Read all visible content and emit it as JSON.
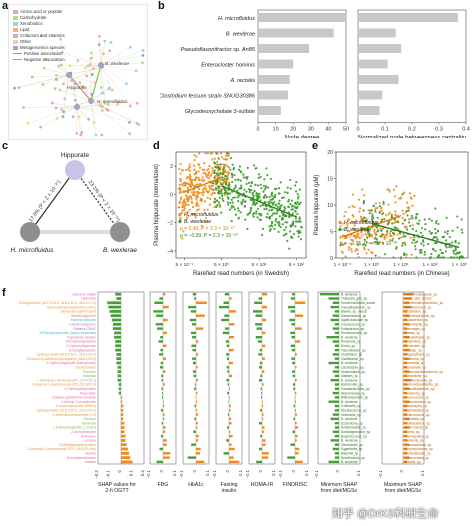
{
  "panels": {
    "a": "a",
    "b": "b",
    "c": "c",
    "d": "d",
    "e": "e",
    "f": "f"
  },
  "network": {
    "legend": [
      {
        "label": "Amino acid or peptide",
        "color": "#e8a3b5",
        "kind": "box"
      },
      {
        "label": "Carbohydrate",
        "color": "#b9d88e",
        "kind": "box"
      },
      {
        "label": "Xenobiotics",
        "color": "#9ad3e6",
        "kind": "box"
      },
      {
        "label": "Lipid",
        "color": "#f4b183",
        "kind": "box"
      },
      {
        "label": "Cofactors and vitamins",
        "color": "#d9a4de",
        "kind": "box"
      },
      {
        "label": "Other",
        "color": "#f7d57e",
        "kind": "box"
      },
      {
        "label": "Metagenomics species",
        "color": "#9aa6c8",
        "kind": "box"
      },
      {
        "label": "Positive association",
        "color": "#7bc043",
        "kind": "line"
      },
      {
        "label": "Negative association",
        "color": "#e8836b",
        "kind": "line"
      }
    ],
    "labels": [
      "B. wexlerae",
      "H. microfluidus",
      "Hippurate"
    ]
  },
  "chart_data": [
    {
      "type": "bar",
      "title": "",
      "categories": [
        "H. microfluidus",
        "B. wexlerae",
        "Pseudoflavonifractor sp. An85",
        "Enterocloster hominis",
        "A. rectalis",
        "Clostridium fessum strain SNUG30386",
        "Glycodeoxycholate 3-sulfate"
      ],
      "series": [
        {
          "values": [
            50,
            43,
            29,
            20,
            18,
            17,
            13
          ]
        }
      ],
      "xlabel": "Node degree",
      "xlim": [
        0,
        50
      ],
      "xticks": [
        "0",
        "10",
        "20",
        "30",
        "40",
        "50"
      ],
      "bar_color": "#c8c8c8"
    },
    {
      "type": "bar",
      "title": "",
      "categories": [
        "H. microfluidus",
        "B. wexlerae",
        "Pseudoflavonifractor sp. An85",
        "Enterocloster hominis",
        "A. rectalis",
        "Clostridium fessum strain SNUG30386",
        "Glycodeoxycholate 3-sulfate"
      ],
      "series": [
        {
          "values": [
            0.37,
            0.14,
            0.16,
            0.11,
            0.15,
            0.09,
            0.08
          ]
        }
      ],
      "xlabel": "Normalized node betweenness centrality",
      "xlim": [
        0,
        0.4
      ],
      "xticks": [
        "0",
        "0.1",
        "0.2",
        "0.3",
        "0.4"
      ],
      "bar_color": "#c8c8c8"
    },
    {
      "type": "scatter",
      "title": "",
      "xlabel": "Rarefied read numbers (in Swedish)",
      "ylabel": "Plasma hippurate (normalized)",
      "xticks": [
        "5 × 10⁻¹",
        "5 × 10⁰",
        "5 × 10¹",
        "5 × 10²"
      ],
      "yticks": [
        "−4",
        "−2",
        "0",
        "2"
      ],
      "ylim": [
        -4.5,
        3
      ],
      "series": [
        {
          "name": "H. microfluidus",
          "color": "#f08c1e",
          "trend": [
            [
              0.5,
              0.15
            ],
            [
              5,
              1.2
            ]
          ]
        },
        {
          "name": "B. wexlerae",
          "color": "#3a9a2a",
          "trend": [
            [
              5,
              0.6
            ],
            [
              500,
              -1.6
            ]
          ]
        }
      ],
      "annotations": [
        "ρ = 0.40, P = 2.3 × 10⁻⁵⁰",
        "ρ = −0.39, P = 2.3 × 10⁻⁵⁰"
      ]
    },
    {
      "type": "scatter",
      "title": "",
      "xlabel": "Rarefied read numbers (in Chinese)",
      "ylabel": "Plasma hippurate (μM)",
      "xticks": [
        "1 × 10⁻¹",
        "1 × 10⁰",
        "1 × 10¹",
        "1 × 10²",
        "1 × 10³"
      ],
      "yticks": [
        "0",
        "5",
        "10",
        "15",
        "20"
      ],
      "ylim": [
        0,
        20
      ],
      "series": [
        {
          "name": "H. microfluidus",
          "color": "#f08c1e",
          "trend": [
            [
              0.1,
              4
            ],
            [
              10,
              8
            ]
          ]
        },
        {
          "name": "B. wexlerae",
          "color": "#3a9a2a",
          "trend": [
            [
              1,
              6.5
            ],
            [
              1000,
              2
            ]
          ]
        }
      ],
      "annotations": [
        "ρ = 0.45, P = 4.1 × 10⁻⁵⁰",
        "ρ = −0.35, P = 7.8 × 10⁻³⁰"
      ]
    }
  ],
  "triangle": {
    "top": "Hippurate",
    "left": "H. microfluidus",
    "right": "B. wexlerae",
    "left_edge": "17.6% (P < 2 × 10⁻¹⁶)",
    "right_edge": "23.1% (P < 2 × 10⁻¹⁶)"
  },
  "shap": {
    "features": [
      "Catechol sulfate",
      "Hippurate",
      "Sphingomyelin (d17:1/16:0, d18:1/15:0, d16:1/17:0)",
      "Glycerophosphorylcholine (GPC)",
      "Glycerophosphoinositol",
      "Isobutyrylglycine",
      "Indolepropionate",
      "Cinnamoylglycine",
      "Gamma-CEHC",
      "3-Phenylpropionate (hydrocinnamate)",
      "Tryptophan betaine",
      "Phenylalanylalanine",
      "2-Hydroxyhippurate",
      "N-acetylglutamine",
      "Sphingomyelin (d18:2/24:1, d18:1/24:2)",
      "Glycosyl-N-palmitoyl-sphingosine (d18:1/16:0)",
      "2-Hydroxyhippurate (salicylurate)",
      "Deoxycholate",
      "Fructose",
      "Mannitol",
      "1-Palmitoyl-2-linoleoyl-GPC (16:0/18:2)",
      "1-Stearoyl-2-arachidonoyl-GPC (18:0/20:4)",
      "1-Carboxyethylvaline",
      "Pipecolate",
      "Cysteine-glutathione disulfide",
      "3-Methyl-2-oxovalerate",
      "3-Hydroxybutyrate (BHBA)",
      "Sphingomyelin (d18:1/20:0, d16:1/22:0)",
      "2-Methylbutyrylcarnitine (C5)",
      "Glucose",
      "Mannose",
      "1,5-Anhydroglucitol (1,5-AG)",
      "2-Aminobutyrate",
      "Isoleucine",
      "Leucine",
      "3-Methylglutarylcarnitine",
      "1-Linoleoyl-2-arachidonoyl-GPC (18:2/20:4n6)",
      "Glycine",
      "N-formylmethionine",
      "Alanine"
    ],
    "feature_colors": [
      "#e06c9f",
      "#e06c9f",
      "#e8983e",
      "#e8983e",
      "#e8983e",
      "#e06c9f",
      "#4db7c9",
      "#e06c9f",
      "#a566c7",
      "#4db7c9",
      "#e06c9f",
      "#e06c9f",
      "#e06c9f",
      "#e06c9f",
      "#e8983e",
      "#e8983e",
      "#e06c9f",
      "#e8983e",
      "#7fb34e",
      "#7fb34e",
      "#e8983e",
      "#e8983e",
      "#e06c9f",
      "#e06c9f",
      "#e06c9f",
      "#e06c9f",
      "#e8983e",
      "#e8983e",
      "#e8983e",
      "#7fb34e",
      "#7fb34e",
      "#7fb34e",
      "#e06c9f",
      "#e06c9f",
      "#e06c9f",
      "#e8983e",
      "#e8983e",
      "#e06c9f",
      "#e06c9f",
      "#e06c9f"
    ],
    "values": [
      -0.05,
      -0.04,
      -0.12,
      -0.11,
      -0.1,
      -0.09,
      -0.08,
      -0.07,
      -0.07,
      -0.06,
      -0.06,
      -0.05,
      -0.05,
      -0.05,
      -0.04,
      -0.04,
      -0.04,
      -0.03,
      -0.03,
      -0.03,
      -0.03,
      -0.02,
      -0.02,
      -0.02,
      0.01,
      0.01,
      0.02,
      0.02,
      0.02,
      0.02,
      0.03,
      0.03,
      0.03,
      0.04,
      0.04,
      0.05,
      0.06,
      0.07,
      0.08,
      0.1
    ],
    "xlabel": "SHAP values for 2-h OGTT",
    "xticks": [
      "−0.2",
      "−0.1",
      "0",
      "0.1",
      "0.2"
    ],
    "columns": [
      "FBG",
      "HbA1c",
      "Fasting insulin",
      "HOMA-IR",
      "FINDRISC"
    ],
    "column_ticks": [
      "−0.1",
      "0",
      "0.1"
    ],
    "min_label": "Minimum SHAP from diet/MGSs",
    "max_label": "Maximum SHAP from diet/MGSs",
    "min_species": [
      "B. wexlerae",
      "Thalassia_gen_sp.",
      "Hominimerdicola_aceae",
      "Faecalibacterium_sp.",
      "Blautia_sp._faecis",
      "Aleriamedicus_sp.",
      "Agathobaculum_sp.",
      "Coprococcus_sp.",
      "Eubacterium_sp.",
      "Ruminococcus_sp.",
      "B. wexlerae",
      "Roseburia_sp.",
      "Dorea_sp.",
      "Flavonifractor_sp.",
      "Clostridium_sp.",
      "Oscillibacter_sp.",
      "B. wexlerae",
      "Lachnospira_sp.",
      "Anaerostipes_sp.",
      "Alistipes_sp.",
      "B. wexlerae",
      "Bacteroides_sp.",
      "Parabacteroides_sp.",
      "Akkermansia_sp.",
      "Bifidobacterium_sp.",
      "B. wexlerae",
      "Collinsella_sp.",
      "Streptococcus_sp.",
      "Veillonella_sp.",
      "B. wexlerae",
      "Escherichia_sp.",
      "Holdemanella_sp.",
      "Subdoligranulum_sp.",
      "Butyricicoccus_sp.",
      "B. wexlerae",
      "Odoribacter_sp.",
      "Eggerthella_sp.",
      "Bilophila_sp.",
      "Desulfovibrio_sp.",
      "B. wexlerae"
    ],
    "min_values": [
      -0.09,
      -0.05,
      -0.03,
      -0.04,
      -0.02,
      -0.03,
      -0.04,
      -0.02,
      -0.03,
      -0.02,
      -0.06,
      -0.03,
      -0.02,
      -0.02,
      -0.03,
      -0.02,
      -0.05,
      -0.02,
      -0.03,
      -0.02,
      -0.04,
      -0.02,
      -0.02,
      -0.03,
      -0.02,
      -0.05,
      -0.02,
      -0.02,
      -0.03,
      -0.04,
      -0.02,
      -0.02,
      -0.03,
      -0.02,
      -0.04,
      -0.02,
      -0.03,
      -0.02,
      -0.02,
      -0.05
    ],
    "max_species": [
      "Alteromonadaceae_sp.",
      "Fruits_and_berries",
      "Hominenteromicrobium_sp.",
      "Ruminococcus_sp.",
      "Clostridium_sp.",
      "Lachnospiraceae_sp.",
      "Eubacterium_sp.",
      "Coprobacter_sp.",
      "Gemmiger_sp.",
      "Blautia_sp.",
      "Intestinibacter_sp.",
      "Butyrivibrio_sp.",
      "Firmicutes_sp.",
      "Dialister_sp.",
      "Megasphaera_sp.",
      "Sutterella_sp.",
      "Prevotella_sp.",
      "Barnesiella_sp.",
      "Phascolarctobacterium_sp.",
      "Turicibacter_sp.",
      "Christensenella_sp.",
      "Methanobrevibacter_sp.",
      "Faecalibacterium_sp.",
      "Roseburia_sp.",
      "Coprococcus_sp.",
      "Anaerotruncus_sp.",
      "Oscillospira_sp.",
      "Lactobacillus_sp.",
      "Enterococcus_sp.",
      "Klebsiella_sp.",
      "Cutibacterium_sp.",
      "Actinomyces_sp.",
      "Rothia_sp.",
      "Haemophilus_sp.",
      "Neisseria_sp.",
      "Fusobacterium_sp.",
      "Porphyromonas_sp.",
      "Gordonibacter_sp.",
      "Adlercreutzia_sp.",
      "Slackia_sp."
    ],
    "max_values": [
      0.05,
      0.04,
      0.03,
      0.04,
      0.02,
      0.03,
      0.02,
      0.03,
      0.02,
      0.02,
      0.03,
      0.02,
      0.02,
      0.03,
      0.02,
      0.03,
      0.02,
      0.02,
      0.03,
      0.02,
      0.04,
      0.02,
      0.03,
      0.02,
      0.02,
      0.03,
      0.02,
      0.02,
      0.02,
      0.03,
      0.02,
      0.03,
      0.02,
      0.02,
      0.02,
      0.03,
      0.02,
      0.02,
      0.03,
      0.02
    ]
  },
  "watermark": "知乎 @DrKS科研生命"
}
